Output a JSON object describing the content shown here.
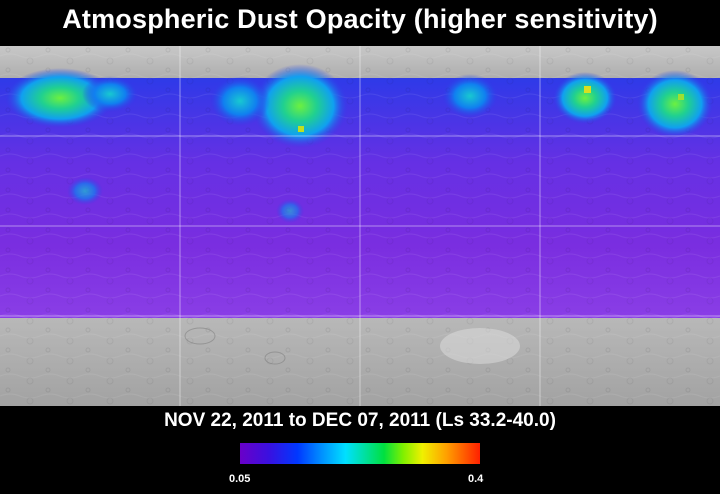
{
  "title": "Atmospheric Dust Opacity (higher sensitivity)",
  "date_range": "NOV 22, 2011 to DEC 07, 2011 (Ls 33.2-40.0)",
  "colorbar": {
    "min_label": "0.05",
    "max_label": "0.4",
    "colors": [
      "#6a00c8",
      "#0038ff",
      "#00e0ff",
      "#00e040",
      "#f0f000",
      "#ffa000",
      "#ff2000"
    ]
  }
}
